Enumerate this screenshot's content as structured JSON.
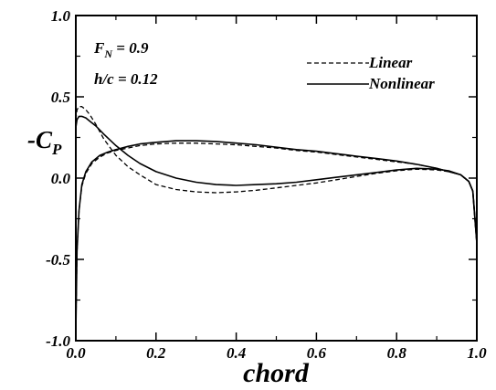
{
  "chart_data": {
    "type": "line",
    "title": "",
    "xlabel": "chord",
    "ylabel_main": "-C",
    "ylabel_sub": "P",
    "xlim": [
      0.0,
      1.0
    ],
    "ylim": [
      -1.0,
      1.0
    ],
    "x_ticks": [
      0.0,
      0.2,
      0.4,
      0.6,
      0.8,
      1.0
    ],
    "x_tick_labels": [
      "0.0",
      "0.2",
      "0.4",
      "0.6",
      "0.8",
      "1.0"
    ],
    "y_ticks": [
      -1.0,
      -0.5,
      0.0,
      0.5,
      1.0
    ],
    "y_tick_labels": [
      "-1.0",
      "-0.5",
      "0.0",
      "0.5",
      "1.0"
    ],
    "grid": false,
    "legend_position": "top-right",
    "annotations": {
      "fn_main": "F",
      "fn_sub": "N",
      "fn_rest": " = 0.9",
      "hc": "h/c = 0.12"
    },
    "series": [
      {
        "name": "Linear",
        "dash": "dashed",
        "color": "#000000",
        "lower": {
          "x": [
            0.0,
            0.003,
            0.008,
            0.015,
            0.025,
            0.035,
            0.05,
            0.07,
            0.1,
            0.13,
            0.16,
            0.2,
            0.25,
            0.3,
            0.35,
            0.4,
            0.45,
            0.5,
            0.55,
            0.6,
            0.65,
            0.7,
            0.75,
            0.8,
            0.85,
            0.9,
            0.93,
            0.96,
            0.98,
            0.99,
            1.0
          ],
          "y": [
            0.36,
            0.42,
            0.44,
            0.44,
            0.42,
            0.39,
            0.33,
            0.24,
            0.14,
            0.07,
            0.02,
            -0.04,
            -0.07,
            -0.085,
            -0.09,
            -0.085,
            -0.075,
            -0.06,
            -0.045,
            -0.03,
            -0.01,
            0.01,
            0.03,
            0.045,
            0.055,
            0.05,
            0.04,
            0.02,
            -0.02,
            -0.08,
            -0.4
          ]
        },
        "upper": {
          "x": [
            0.0,
            0.003,
            0.008,
            0.015,
            0.025,
            0.04,
            0.06,
            0.08,
            0.1,
            0.13,
            0.16,
            0.2,
            0.25,
            0.3,
            0.35,
            0.4,
            0.45,
            0.5,
            0.55,
            0.6,
            0.65,
            0.7,
            0.75,
            0.8,
            0.85,
            0.9,
            0.93,
            0.96,
            0.98,
            0.99,
            1.0
          ],
          "y": [
            -0.95,
            -0.45,
            -0.2,
            -0.05,
            0.03,
            0.09,
            0.13,
            0.155,
            0.17,
            0.185,
            0.2,
            0.21,
            0.215,
            0.215,
            0.21,
            0.205,
            0.195,
            0.185,
            0.17,
            0.16,
            0.145,
            0.13,
            0.115,
            0.1,
            0.085,
            0.06,
            0.04,
            0.02,
            -0.02,
            -0.08,
            -0.4
          ]
        }
      },
      {
        "name": "Nonlinear",
        "dash": "solid",
        "color": "#000000",
        "lower": {
          "x": [
            0.0,
            0.003,
            0.008,
            0.015,
            0.025,
            0.035,
            0.05,
            0.07,
            0.1,
            0.13,
            0.16,
            0.2,
            0.25,
            0.3,
            0.35,
            0.4,
            0.45,
            0.5,
            0.55,
            0.6,
            0.65,
            0.7,
            0.75,
            0.8,
            0.85,
            0.9,
            0.93,
            0.96,
            0.98,
            0.99,
            1.0
          ],
          "y": [
            0.31,
            0.36,
            0.38,
            0.38,
            0.37,
            0.35,
            0.32,
            0.27,
            0.2,
            0.14,
            0.09,
            0.04,
            0.0,
            -0.025,
            -0.04,
            -0.045,
            -0.04,
            -0.035,
            -0.025,
            -0.01,
            0.005,
            0.02,
            0.035,
            0.05,
            0.06,
            0.055,
            0.045,
            0.02,
            -0.02,
            -0.08,
            -0.4
          ]
        },
        "upper": {
          "x": [
            0.0,
            0.003,
            0.008,
            0.015,
            0.025,
            0.04,
            0.06,
            0.08,
            0.1,
            0.13,
            0.16,
            0.2,
            0.25,
            0.3,
            0.35,
            0.4,
            0.45,
            0.5,
            0.55,
            0.6,
            0.65,
            0.7,
            0.75,
            0.8,
            0.85,
            0.9,
            0.93,
            0.96,
            0.98,
            0.99,
            1.0
          ],
          "y": [
            -0.95,
            -0.45,
            -0.2,
            -0.04,
            0.04,
            0.1,
            0.14,
            0.16,
            0.175,
            0.195,
            0.21,
            0.22,
            0.23,
            0.23,
            0.225,
            0.215,
            0.205,
            0.19,
            0.175,
            0.165,
            0.15,
            0.135,
            0.12,
            0.105,
            0.085,
            0.06,
            0.04,
            0.02,
            -0.02,
            -0.08,
            -0.4
          ]
        }
      }
    ]
  }
}
